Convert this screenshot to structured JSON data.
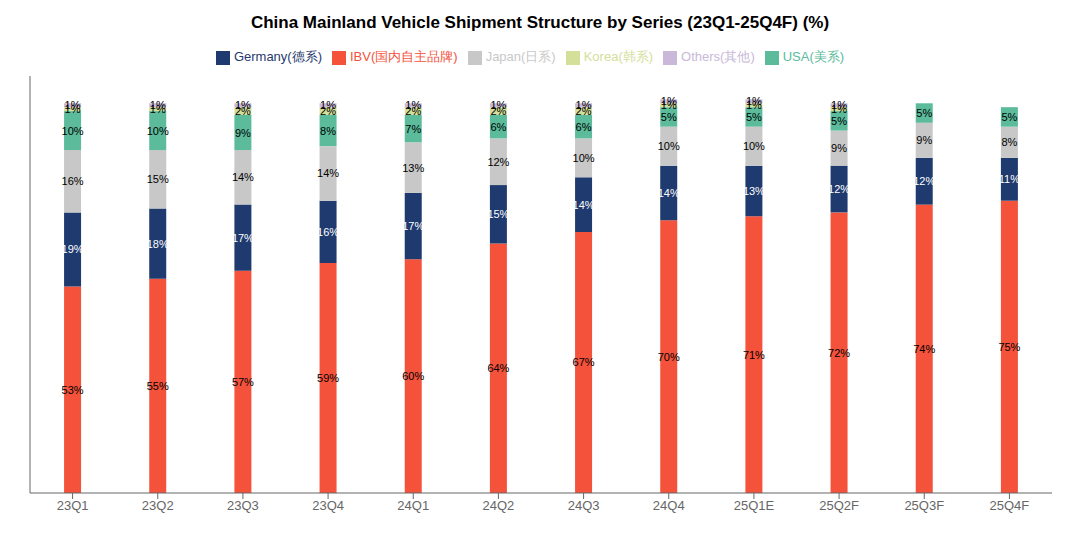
{
  "chart_data": {
    "type": "bar",
    "title": "China Mainland Vehicle Shipment Structure by Series (23Q1-25Q4F) (%)",
    "categories": [
      "23Q1",
      "23Q2",
      "23Q3",
      "23Q4",
      "24Q1",
      "24Q2",
      "24Q3",
      "24Q4",
      "25Q1E",
      "25Q2F",
      "25Q3F",
      "25Q4F"
    ],
    "stacked": true,
    "data_labels": true,
    "legend": "top",
    "grid": false,
    "tick_labels": "x",
    "ylim": [
      0,
      107
    ],
    "yticks": [],
    "series": [
      {
        "name": "IBV(国内自主品牌)",
        "color": "#F4523B",
        "values": [
          53,
          55,
          57,
          59,
          60,
          64,
          67,
          70,
          71,
          72,
          74,
          75
        ],
        "value_labels": [
          "53%",
          "55%",
          "57%",
          "59%",
          "60%",
          "64%",
          "67%",
          "70%",
          "71%",
          "72%",
          "74%",
          "75%"
        ]
      },
      {
        "name": "Germany(德系)",
        "color": "#1F3A6E",
        "values": [
          19,
          18,
          17,
          16,
          17,
          15,
          14,
          14,
          13,
          12,
          12,
          11
        ],
        "value_labels": [
          "19%",
          "18%",
          "17%",
          "16%",
          "17%",
          "15%",
          "14%",
          "14%",
          "13%",
          "12%",
          "12%",
          "11%"
        ]
      },
      {
        "name": "Japan(日系)",
        "color": "#C8C8C8",
        "values": [
          16,
          15,
          14,
          14,
          13,
          12,
          10,
          10,
          10,
          9,
          9,
          8
        ],
        "value_labels": [
          "16%",
          "15%",
          "14%",
          "14%",
          "13%",
          "12%",
          "10%",
          "10%",
          "10%",
          "9%",
          "9%",
          "8%"
        ]
      },
      {
        "name": "USA(美系)",
        "color": "#5BBB9B",
        "values": [
          10,
          10,
          9,
          8,
          7,
          6,
          6,
          5,
          5,
          5,
          5,
          5
        ],
        "value_labels": [
          "10%",
          "10%",
          "9%",
          "8%",
          "7%",
          "6%",
          "6%",
          "5%",
          "5%",
          "5%",
          "5%",
          "5%"
        ]
      },
      {
        "name": "Korea(韩系)",
        "color": "#D4E09A",
        "values": [
          1,
          1,
          2,
          2,
          2,
          2,
          2,
          1,
          1,
          1,
          0,
          0
        ],
        "value_labels": [
          "1%",
          "1%",
          "2%",
          "2%",
          "2%",
          "2%",
          "2%",
          "1%",
          "1%",
          "1%",
          null,
          null
        ]
      },
      {
        "name": "Others(其他)",
        "color": "#C9B8D8",
        "values": [
          1,
          1,
          1,
          1,
          1,
          1,
          1,
          1,
          1,
          1,
          0,
          0
        ],
        "value_labels": [
          "1%",
          "1%",
          "1%",
          "1%",
          "1%",
          "1%",
          "1%",
          "1%",
          "1%",
          "1%",
          null,
          null
        ]
      }
    ]
  }
}
